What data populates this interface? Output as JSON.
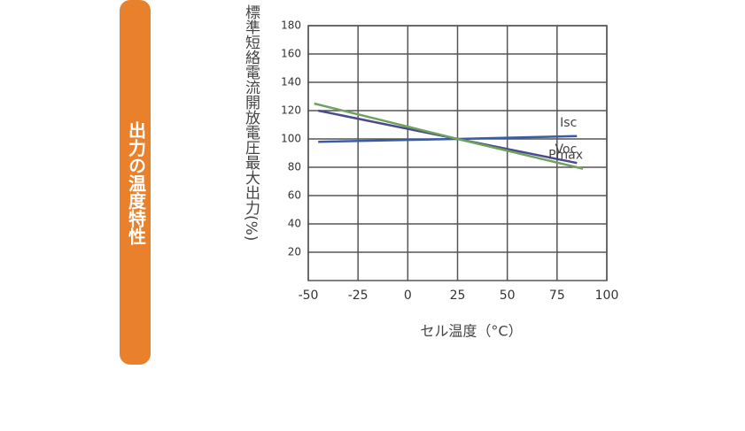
{
  "side_label": "出力の温度特性",
  "chart_data": {
    "type": "line",
    "y_label": "標準短絡電流開放電圧最大出力(%)",
    "x_label": "セル温度（°C）",
    "xlim": [
      -50,
      100
    ],
    "xticks": [
      -50,
      -25,
      0,
      25,
      50,
      75,
      100
    ],
    "ylim": [
      0,
      180
    ],
    "yticks": [
      20,
      40,
      60,
      80,
      100,
      120,
      140,
      160,
      180
    ],
    "grid": true,
    "series": [
      {
        "name": "Isc",
        "color": "#3a5ca8",
        "x": [
          -45,
          25,
          85
        ],
        "values": [
          98,
          100,
          102
        ]
      },
      {
        "name": "Voc",
        "color": "#4b4a8c",
        "x": [
          -45,
          25,
          85
        ],
        "values": [
          120,
          100,
          83
        ]
      },
      {
        "name": "Pmax",
        "color": "#6fa25e",
        "x": [
          -47,
          25,
          88
        ],
        "values": [
          125,
          100,
          79
        ]
      }
    ]
  }
}
